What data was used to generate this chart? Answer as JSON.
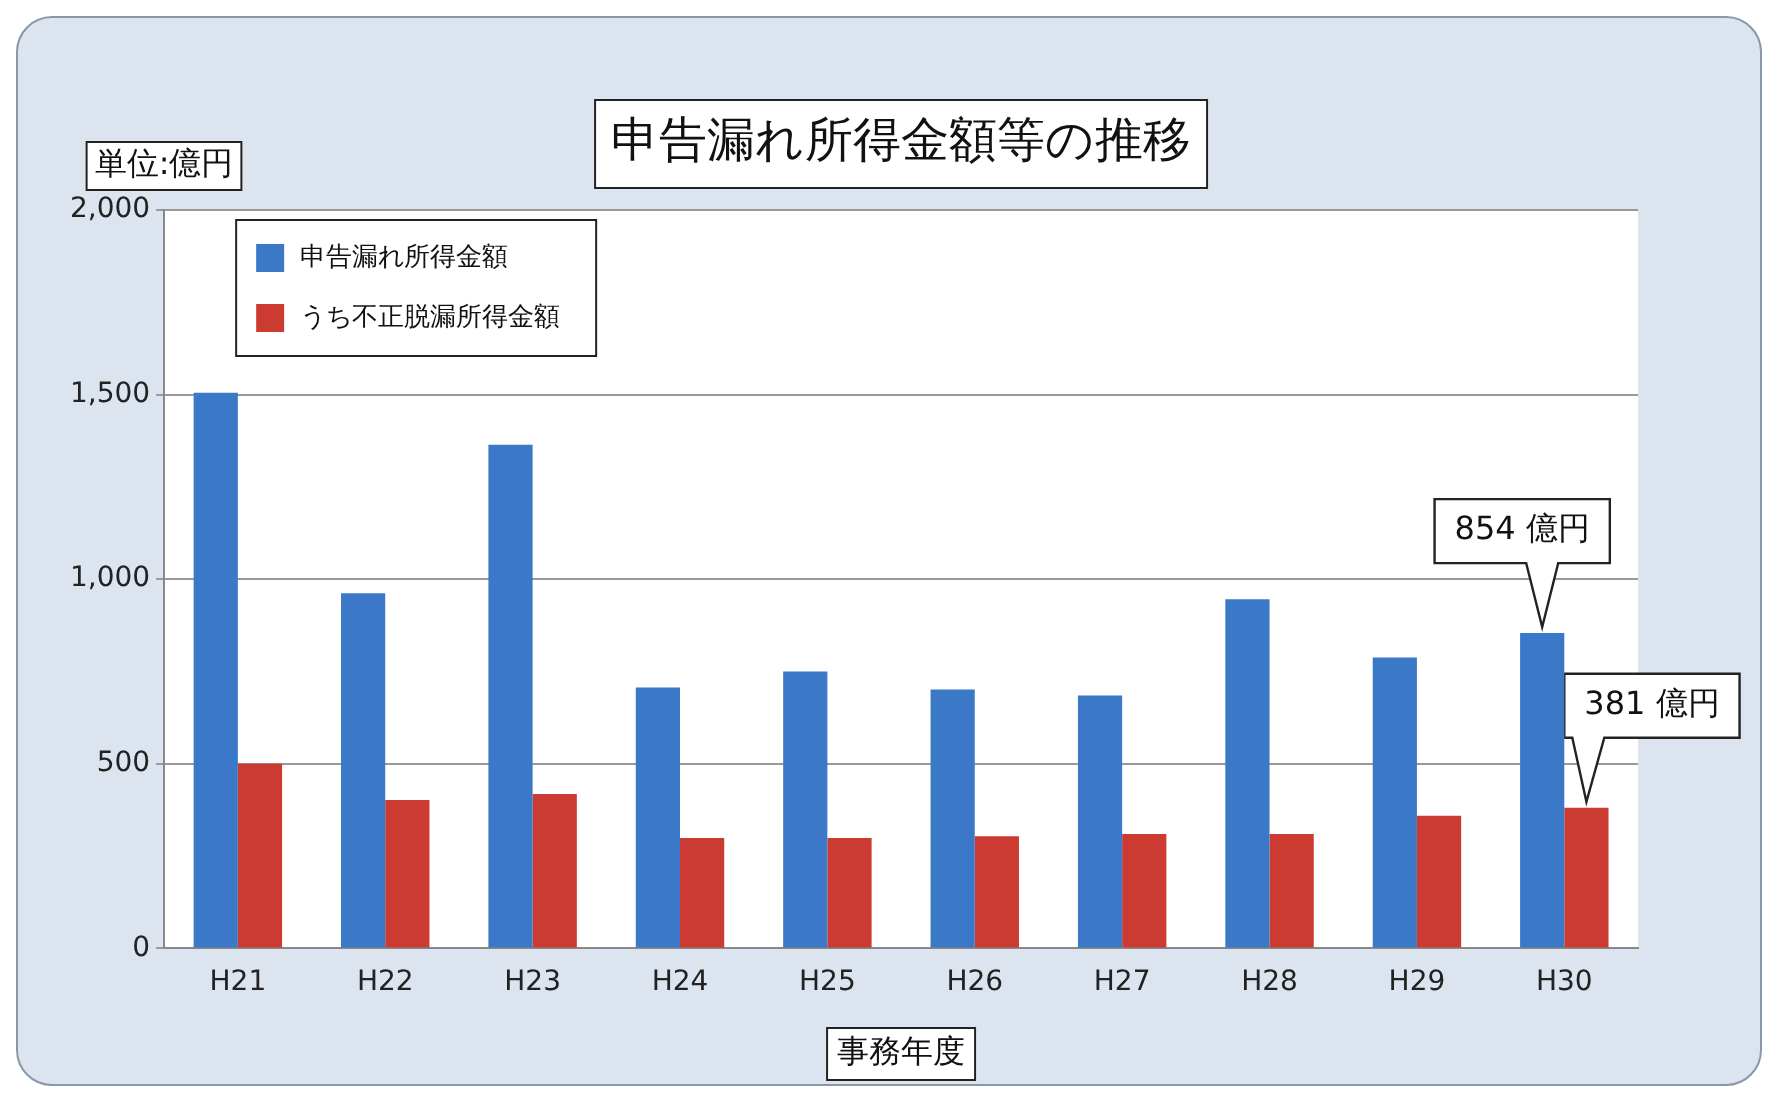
{
  "chart_data": {
    "type": "bar",
    "title": "申告漏れ所得金額等の推移",
    "ylabel": "単位:億円",
    "xlabel": "事務年度",
    "categories": [
      "H21",
      "H22",
      "H23",
      "H24",
      "H25",
      "H26",
      "H27",
      "H28",
      "H29",
      "H30"
    ],
    "series": [
      {
        "name": "申告漏れ所得金額",
        "color": "#3b78c8",
        "values": [
          1505,
          962,
          1364,
          707,
          750,
          701,
          685,
          946,
          788,
          854
        ]
      },
      {
        "name": "うち不正脱漏所得金額",
        "color": "#cc3b32",
        "values": [
          500,
          402,
          418,
          299,
          299,
          304,
          310,
          310,
          359,
          381
        ]
      }
    ],
    "ylim": [
      0,
      2000
    ],
    "yticks": [
      0,
      {
        "value": 500,
        "label": "500"
      },
      {
        "value": 1000,
        "label": "1,000"
      },
      {
        "value": 1500,
        "label": "1,500"
      },
      {
        "value": 2000,
        "label": "2,000"
      }
    ],
    "grid": "y",
    "legend": "top left",
    "annotations": [
      {
        "text": "854 億円",
        "x": "H30",
        "y": 854
      },
      {
        "text": "381 億円",
        "x": "H30",
        "y": 381
      }
    ]
  }
}
